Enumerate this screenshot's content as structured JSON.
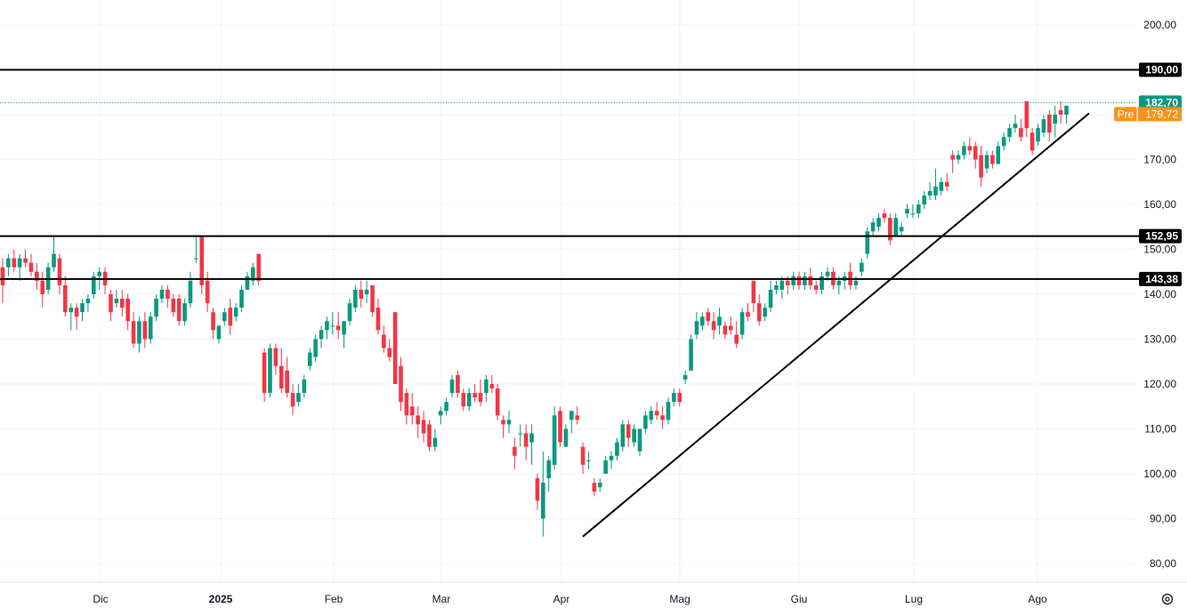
{
  "chart_data": {
    "type": "candlestick",
    "y_axis": {
      "ticks": [
        "80,00",
        "90,00",
        "100,00",
        "110,00",
        "120,00",
        "130,00",
        "140,00",
        "150,00",
        "160,00",
        "170,00",
        "180,00",
        "190,00",
        "200,00"
      ],
      "tick_values": [
        80,
        90,
        100,
        110,
        120,
        130,
        140,
        150,
        160,
        170,
        180,
        190,
        200
      ],
      "ylim": [
        75.5,
        205.5
      ]
    },
    "x_axis": {
      "ticks": [
        "Dic",
        "2025",
        "Feb",
        "Mar",
        "Apr",
        "Mag",
        "Giu",
        "Lug",
        "Ago"
      ],
      "bold": [
        "2025"
      ]
    },
    "horizontal_levels": [
      {
        "value": 190.0,
        "label": "190,00"
      },
      {
        "value": 152.95,
        "label": "152,95"
      },
      {
        "value": 143.38,
        "label": "143,38"
      }
    ],
    "last_price": {
      "value": 182.7,
      "label": "182,70",
      "color": "#089981"
    },
    "premarket": {
      "value": 179.72,
      "label": "179,72",
      "tag": "Pre",
      "color": "#f7931a"
    },
    "trendline": {
      "start": {
        "date": "Apr 07",
        "price": 86.0
      },
      "end": {
        "date": "Ago 08",
        "price": 181.5
      }
    },
    "colors": {
      "up": "#089981",
      "down": "#f23645",
      "grid": "#f0f3fa",
      "line": "#000000"
    },
    "candles": [
      {
        "o": 146,
        "h": 148,
        "l": 138,
        "c": 142
      },
      {
        "o": 146,
        "h": 149,
        "l": 144,
        "c": 148
      },
      {
        "o": 148,
        "h": 150,
        "l": 145,
        "c": 146
      },
      {
        "o": 146,
        "h": 149,
        "l": 143,
        "c": 148
      },
      {
        "o": 148,
        "h": 150,
        "l": 146,
        "c": 147
      },
      {
        "o": 147,
        "h": 149,
        "l": 144,
        "c": 145
      },
      {
        "o": 145,
        "h": 147,
        "l": 141,
        "c": 143
      },
      {
        "o": 143,
        "h": 145,
        "l": 137,
        "c": 140
      },
      {
        "o": 141,
        "h": 147,
        "l": 140,
        "c": 146
      },
      {
        "o": 146,
        "h": 153,
        "l": 145,
        "c": 149
      },
      {
        "o": 148,
        "h": 149,
        "l": 140,
        "c": 142
      },
      {
        "o": 142,
        "h": 144,
        "l": 135,
        "c": 136
      },
      {
        "o": 136,
        "h": 138,
        "l": 132,
        "c": 137
      },
      {
        "o": 137,
        "h": 138,
        "l": 132,
        "c": 135
      },
      {
        "o": 136,
        "h": 139,
        "l": 134,
        "c": 138
      },
      {
        "o": 138,
        "h": 140,
        "l": 136,
        "c": 139
      },
      {
        "o": 140,
        "h": 145,
        "l": 139,
        "c": 144
      },
      {
        "o": 144,
        "h": 146,
        "l": 141,
        "c": 145
      },
      {
        "o": 145,
        "h": 146,
        "l": 140,
        "c": 142
      },
      {
        "o": 140,
        "h": 141,
        "l": 134,
        "c": 136
      },
      {
        "o": 138,
        "h": 141,
        "l": 137,
        "c": 139
      },
      {
        "o": 139,
        "h": 141,
        "l": 135,
        "c": 137
      },
      {
        "o": 139,
        "h": 140,
        "l": 132,
        "c": 134
      },
      {
        "o": 134,
        "h": 136,
        "l": 128,
        "c": 129
      },
      {
        "o": 129,
        "h": 135,
        "l": 127,
        "c": 134
      },
      {
        "o": 134,
        "h": 136,
        "l": 128,
        "c": 130
      },
      {
        "o": 130,
        "h": 136,
        "l": 129,
        "c": 135
      },
      {
        "o": 135,
        "h": 140,
        "l": 134,
        "c": 139
      },
      {
        "o": 139,
        "h": 142,
        "l": 138,
        "c": 141
      },
      {
        "o": 141,
        "h": 142,
        "l": 137,
        "c": 139
      },
      {
        "o": 139,
        "h": 140,
        "l": 135,
        "c": 136
      },
      {
        "o": 139,
        "h": 140,
        "l": 133,
        "c": 134
      },
      {
        "o": 134,
        "h": 139,
        "l": 133,
        "c": 138
      },
      {
        "o": 138,
        "h": 145,
        "l": 137,
        "c": 143
      },
      {
        "o": 148,
        "h": 153,
        "l": 147,
        "c": 148
      },
      {
        "o": 153,
        "h": 153,
        "l": 140,
        "c": 142
      },
      {
        "o": 143,
        "h": 145,
        "l": 136,
        "c": 138
      },
      {
        "o": 136,
        "h": 137,
        "l": 130,
        "c": 132
      },
      {
        "o": 130,
        "h": 133,
        "l": 129,
        "c": 133
      },
      {
        "o": 134,
        "h": 137,
        "l": 133,
        "c": 136
      },
      {
        "o": 137,
        "h": 139,
        "l": 131,
        "c": 133
      },
      {
        "o": 135,
        "h": 138,
        "l": 134,
        "c": 137
      },
      {
        "o": 137,
        "h": 142,
        "l": 136,
        "c": 141
      },
      {
        "o": 141,
        "h": 145,
        "l": 141,
        "c": 144
      },
      {
        "o": 143,
        "h": 147,
        "l": 142,
        "c": 146
      },
      {
        "o": 149,
        "h": 149,
        "l": 142,
        "c": 143
      },
      {
        "o": 127,
        "h": 128,
        "l": 116,
        "c": 118
      },
      {
        "o": 118,
        "h": 129,
        "l": 117,
        "c": 128
      },
      {
        "o": 128,
        "h": 129,
        "l": 122,
        "c": 124
      },
      {
        "o": 124,
        "h": 128,
        "l": 118,
        "c": 119
      },
      {
        "o": 123,
        "h": 126,
        "l": 117,
        "c": 118
      },
      {
        "o": 118,
        "h": 120,
        "l": 113,
        "c": 115
      },
      {
        "o": 116,
        "h": 120,
        "l": 115,
        "c": 118
      },
      {
        "o": 118,
        "h": 122,
        "l": 117,
        "c": 121
      },
      {
        "o": 124,
        "h": 128,
        "l": 123,
        "c": 127
      },
      {
        "o": 126,
        "h": 131,
        "l": 125,
        "c": 130
      },
      {
        "o": 130,
        "h": 133,
        "l": 128,
        "c": 132
      },
      {
        "o": 132,
        "h": 135,
        "l": 130,
        "c": 134
      },
      {
        "o": 133,
        "h": 136,
        "l": 131,
        "c": 133
      },
      {
        "o": 133,
        "h": 136,
        "l": 130,
        "c": 132
      },
      {
        "o": 131,
        "h": 134,
        "l": 128,
        "c": 134
      },
      {
        "o": 134,
        "h": 139,
        "l": 133,
        "c": 138
      },
      {
        "o": 137,
        "h": 142,
        "l": 136,
        "c": 141
      },
      {
        "o": 141,
        "h": 143,
        "l": 137,
        "c": 139
      },
      {
        "o": 140,
        "h": 143,
        "l": 138,
        "c": 141
      },
      {
        "o": 142,
        "h": 142,
        "l": 135,
        "c": 136
      },
      {
        "o": 137,
        "h": 139,
        "l": 131,
        "c": 132
      },
      {
        "o": 131,
        "h": 133,
        "l": 127,
        "c": 128
      },
      {
        "o": 128,
        "h": 130,
        "l": 125,
        "c": 126
      },
      {
        "o": 136,
        "h": 136,
        "l": 120,
        "c": 120
      },
      {
        "o": 124,
        "h": 126,
        "l": 114,
        "c": 116
      },
      {
        "o": 118,
        "h": 119,
        "l": 111,
        "c": 113
      },
      {
        "o": 115,
        "h": 118,
        "l": 111,
        "c": 113
      },
      {
        "o": 113,
        "h": 115,
        "l": 108,
        "c": 111
      },
      {
        "o": 112,
        "h": 114,
        "l": 107,
        "c": 109
      },
      {
        "o": 111,
        "h": 112,
        "l": 105,
        "c": 106
      },
      {
        "o": 106,
        "h": 110,
        "l": 105,
        "c": 108
      },
      {
        "o": 113,
        "h": 115,
        "l": 111,
        "c": 114
      },
      {
        "o": 114,
        "h": 117,
        "l": 113,
        "c": 116
      },
      {
        "o": 118,
        "h": 122,
        "l": 117,
        "c": 121
      },
      {
        "o": 122,
        "h": 123,
        "l": 117,
        "c": 118
      },
      {
        "o": 118,
        "h": 119,
        "l": 114,
        "c": 115
      },
      {
        "o": 115,
        "h": 119,
        "l": 114,
        "c": 118
      },
      {
        "o": 118,
        "h": 120,
        "l": 116,
        "c": 117
      },
      {
        "o": 118,
        "h": 121,
        "l": 115,
        "c": 116
      },
      {
        "o": 118,
        "h": 122,
        "l": 116,
        "c": 121
      },
      {
        "o": 120,
        "h": 122,
        "l": 118,
        "c": 119
      },
      {
        "o": 119,
        "h": 120,
        "l": 112,
        "c": 113
      },
      {
        "o": 112,
        "h": 113,
        "l": 108,
        "c": 111
      },
      {
        "o": 111,
        "h": 114,
        "l": 109,
        "c": 112
      },
      {
        "o": 106,
        "h": 108,
        "l": 101,
        "c": 104
      },
      {
        "o": 109,
        "h": 111,
        "l": 106,
        "c": 109
      },
      {
        "o": 109,
        "h": 111,
        "l": 103,
        "c": 106
      },
      {
        "o": 107,
        "h": 111,
        "l": 102,
        "c": 109
      },
      {
        "o": 99,
        "h": 100,
        "l": 92,
        "c": 94
      },
      {
        "o": 90,
        "h": 105,
        "l": 86,
        "c": 98
      },
      {
        "o": 99,
        "h": 104,
        "l": 96,
        "c": 103
      },
      {
        "o": 102,
        "h": 115,
        "l": 101,
        "c": 113
      },
      {
        "o": 114,
        "h": 115,
        "l": 106,
        "c": 107
      },
      {
        "o": 106,
        "h": 111,
        "l": 106,
        "c": 110
      },
      {
        "o": 112,
        "h": 114,
        "l": 109,
        "c": 114
      },
      {
        "o": 113,
        "h": 115,
        "l": 111,
        "c": 112
      },
      {
        "o": 106,
        "h": 107,
        "l": 100,
        "c": 102
      },
      {
        "o": 103,
        "h": 105,
        "l": 101,
        "c": 103
      },
      {
        "o": 98,
        "h": 99,
        "l": 95,
        "c": 96
      },
      {
        "o": 97,
        "h": 99,
        "l": 96,
        "c": 98
      },
      {
        "o": 100,
        "h": 104,
        "l": 100,
        "c": 103
      },
      {
        "o": 103,
        "h": 105,
        "l": 101,
        "c": 104
      },
      {
        "o": 104,
        "h": 108,
        "l": 103,
        "c": 107
      },
      {
        "o": 106,
        "h": 112,
        "l": 105,
        "c": 111
      },
      {
        "o": 111,
        "h": 112,
        "l": 106,
        "c": 108
      },
      {
        "o": 107,
        "h": 111,
        "l": 106,
        "c": 110
      },
      {
        "o": 105,
        "h": 110,
        "l": 104,
        "c": 110
      },
      {
        "o": 110,
        "h": 114,
        "l": 109,
        "c": 113
      },
      {
        "o": 112,
        "h": 115,
        "l": 111,
        "c": 114
      },
      {
        "o": 114,
        "h": 116,
        "l": 112,
        "c": 113
      },
      {
        "o": 113,
        "h": 115,
        "l": 110,
        "c": 112
      },
      {
        "o": 112,
        "h": 117,
        "l": 111,
        "c": 116
      },
      {
        "o": 116,
        "h": 119,
        "l": 115,
        "c": 118
      },
      {
        "o": 118,
        "h": 119,
        "l": 115,
        "c": 116
      },
      {
        "o": 121,
        "h": 123,
        "l": 120,
        "c": 122
      },
      {
        "o": 123,
        "h": 131,
        "l": 123,
        "c": 130
      },
      {
        "o": 131,
        "h": 136,
        "l": 130,
        "c": 134
      },
      {
        "o": 133,
        "h": 136,
        "l": 132,
        "c": 135
      },
      {
        "o": 136,
        "h": 137,
        "l": 133,
        "c": 134
      },
      {
        "o": 134,
        "h": 136,
        "l": 130,
        "c": 132
      },
      {
        "o": 133,
        "h": 137,
        "l": 131,
        "c": 135
      },
      {
        "o": 133,
        "h": 134,
        "l": 130,
        "c": 131
      },
      {
        "o": 133,
        "h": 135,
        "l": 131,
        "c": 132
      },
      {
        "o": 131,
        "h": 134,
        "l": 128,
        "c": 129
      },
      {
        "o": 131,
        "h": 137,
        "l": 130,
        "c": 136
      },
      {
        "o": 136,
        "h": 138,
        "l": 134,
        "c": 135
      },
      {
        "o": 143,
        "h": 143,
        "l": 136,
        "c": 138
      },
      {
        "o": 138,
        "h": 140,
        "l": 133,
        "c": 134
      },
      {
        "o": 135,
        "h": 138,
        "l": 134,
        "c": 137
      },
      {
        "o": 137,
        "h": 143,
        "l": 136,
        "c": 141
      },
      {
        "o": 141,
        "h": 143,
        "l": 140,
        "c": 142
      },
      {
        "o": 141,
        "h": 144,
        "l": 139,
        "c": 143
      },
      {
        "o": 143,
        "h": 144,
        "l": 140,
        "c": 142
      },
      {
        "o": 142,
        "h": 145,
        "l": 141,
        "c": 144
      },
      {
        "o": 144,
        "h": 145,
        "l": 141,
        "c": 142
      },
      {
        "o": 142,
        "h": 145,
        "l": 141,
        "c": 144
      },
      {
        "o": 144,
        "h": 146,
        "l": 141,
        "c": 142
      },
      {
        "o": 142,
        "h": 143,
        "l": 140,
        "c": 141
      },
      {
        "o": 141,
        "h": 145,
        "l": 140,
        "c": 144
      },
      {
        "o": 144,
        "h": 146,
        "l": 143,
        "c": 145
      },
      {
        "o": 145,
        "h": 146,
        "l": 141,
        "c": 142
      },
      {
        "o": 142,
        "h": 144,
        "l": 140,
        "c": 143
      },
      {
        "o": 143,
        "h": 145,
        "l": 141,
        "c": 144
      },
      {
        "o": 145,
        "h": 147,
        "l": 141,
        "c": 142
      },
      {
        "o": 142,
        "h": 144,
        "l": 141,
        "c": 143
      },
      {
        "o": 145,
        "h": 148,
        "l": 144,
        "c": 147
      },
      {
        "o": 149,
        "h": 155,
        "l": 148,
        "c": 154
      },
      {
        "o": 154,
        "h": 157,
        "l": 153,
        "c": 156
      },
      {
        "o": 155,
        "h": 158,
        "l": 154,
        "c": 157
      },
      {
        "o": 158,
        "h": 159,
        "l": 156,
        "c": 157
      },
      {
        "o": 157,
        "h": 158,
        "l": 151,
        "c": 152
      },
      {
        "o": 153,
        "h": 158,
        "l": 153,
        "c": 157
      },
      {
        "o": 154,
        "h": 156,
        "l": 153,
        "c": 155
      },
      {
        "o": 158,
        "h": 160,
        "l": 157,
        "c": 159
      },
      {
        "o": 158,
        "h": 160,
        "l": 157,
        "c": 158
      },
      {
        "o": 158,
        "h": 161,
        "l": 157,
        "c": 160
      },
      {
        "o": 160,
        "h": 163,
        "l": 159,
        "c": 162
      },
      {
        "o": 162,
        "h": 165,
        "l": 161,
        "c": 163
      },
      {
        "o": 162,
        "h": 168,
        "l": 161,
        "c": 164
      },
      {
        "o": 163,
        "h": 166,
        "l": 162,
        "c": 165
      },
      {
        "o": 165,
        "h": 167,
        "l": 163,
        "c": 164
      },
      {
        "o": 171,
        "h": 172,
        "l": 167,
        "c": 170
      },
      {
        "o": 170,
        "h": 172,
        "l": 169,
        "c": 171
      },
      {
        "o": 171,
        "h": 174,
        "l": 170,
        "c": 173
      },
      {
        "o": 173,
        "h": 175,
        "l": 171,
        "c": 172
      },
      {
        "o": 173,
        "h": 174,
        "l": 168,
        "c": 170
      },
      {
        "o": 171,
        "h": 173,
        "l": 164,
        "c": 166
      },
      {
        "o": 168,
        "h": 172,
        "l": 167,
        "c": 171
      },
      {
        "o": 171,
        "h": 172,
        "l": 168,
        "c": 169
      },
      {
        "o": 169,
        "h": 174,
        "l": 169,
        "c": 173
      },
      {
        "o": 173,
        "h": 176,
        "l": 172,
        "c": 175
      },
      {
        "o": 175,
        "h": 178,
        "l": 174,
        "c": 177
      },
      {
        "o": 177,
        "h": 180,
        "l": 176,
        "c": 178
      },
      {
        "o": 177,
        "h": 179,
        "l": 174,
        "c": 175
      },
      {
        "o": 183,
        "h": 183,
        "l": 175,
        "c": 177
      },
      {
        "o": 176,
        "h": 177,
        "l": 171,
        "c": 172
      },
      {
        "o": 174,
        "h": 178,
        "l": 173,
        "c": 177
      },
      {
        "o": 176,
        "h": 180,
        "l": 175,
        "c": 179
      },
      {
        "o": 180,
        "h": 181,
        "l": 174,
        "c": 176
      },
      {
        "o": 178,
        "h": 182,
        "l": 175,
        "c": 180
      },
      {
        "o": 181,
        "h": 183,
        "l": 178,
        "c": 180
      },
      {
        "o": 180,
        "h": 182,
        "l": 178,
        "c": 182
      }
    ]
  },
  "settings": {
    "icon": "gear-icon"
  }
}
